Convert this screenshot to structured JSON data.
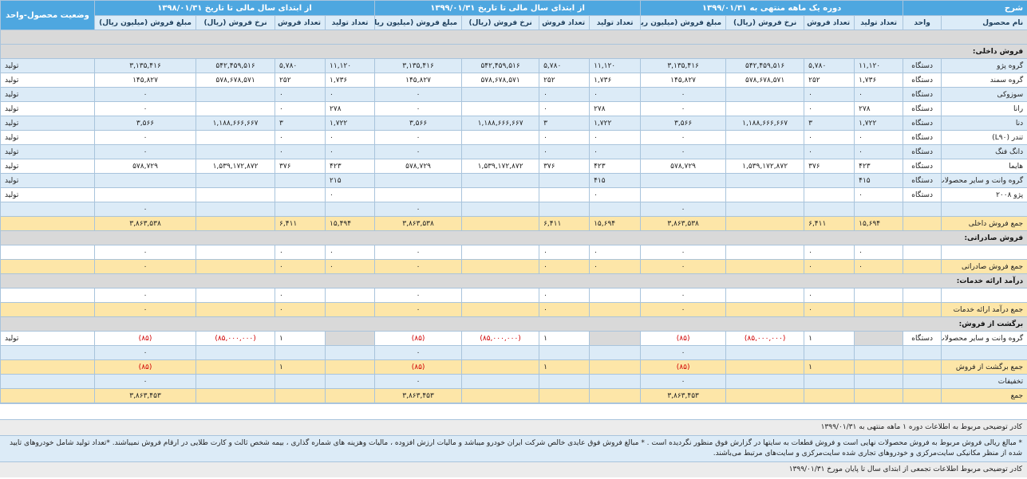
{
  "header": {
    "desc": "شرح",
    "p1": "دوره یک ماهه منتهی به ۱۳۹۹/۰۱/۳۱",
    "p2": "از ابتدای سال مالی تا تاریخ ۱۳۹۹/۰۱/۳۱",
    "p3": "از ابتدای سال مالی تا تاریخ ۱۳۹۸/۰۱/۳۱",
    "status": "وضعیت محصول-واحد"
  },
  "subheader": {
    "product": "نام محصول",
    "unit": "واحد",
    "prod_qty": "تعداد تولید",
    "sale_qty": "تعداد فروش",
    "sale_rate": "نرخ فروش (ریال)",
    "sale_amount": "مبلغ فروش (میلیون ریال)"
  },
  "rows": [
    {
      "type": "blank"
    },
    {
      "type": "section",
      "label": "فروش داخلی:"
    },
    {
      "type": "data",
      "style": "blue",
      "name": "گروه پژو",
      "unit": "دستگاه",
      "c": [
        "۱۱,۱۲۰",
        "۵,۷۸۰",
        "۵۴۲,۴۵۹,۵۱۶",
        "۳,۱۳۵,۴۱۶",
        "۱۱,۱۲۰",
        "۵,۷۸۰",
        "۵۴۲,۴۵۹,۵۱۶",
        "۳,۱۳۵,۴۱۶",
        "۱۱,۱۲۰",
        "۵,۷۸۰",
        "۵۴۲,۴۵۹,۵۱۶",
        "۳,۱۳۵,۴۱۶"
      ],
      "status": "تولید"
    },
    {
      "type": "data",
      "style": "white",
      "name": "گروه سمند",
      "unit": "دستگاه",
      "c": [
        "۱,۷۳۶",
        "۲۵۲",
        "۵۷۸,۶۷۸,۵۷۱",
        "۱۴۵,۸۲۷",
        "۱,۷۳۶",
        "۲۵۲",
        "۵۷۸,۶۷۸,۵۷۱",
        "۱۴۵,۸۲۷",
        "۱,۷۳۶",
        "۲۵۲",
        "۵۷۸,۶۷۸,۵۷۱",
        "۱۴۵,۸۲۷"
      ],
      "status": "تولید"
    },
    {
      "type": "data",
      "style": "blue",
      "name": "سوزوکی",
      "unit": "دستگاه",
      "c": [
        "۰",
        "۰",
        "",
        "۰",
        "۰",
        "۰",
        "",
        "۰",
        "۰",
        "۰",
        "",
        "۰"
      ],
      "status": "تولید"
    },
    {
      "type": "data",
      "style": "white",
      "name": "رانا",
      "unit": "دستگاه",
      "c": [
        "۲۷۸",
        "۰",
        "",
        "۰",
        "۲۷۸",
        "۰",
        "",
        "۰",
        "۲۷۸",
        "۰",
        "",
        "۰"
      ],
      "status": "تولید"
    },
    {
      "type": "data",
      "style": "blue",
      "name": "دنا",
      "unit": "دستگاه",
      "c": [
        "۱,۷۲۲",
        "۳",
        "۱,۱۸۸,۶۶۶,۶۶۷",
        "۳,۵۶۶",
        "۱,۷۲۲",
        "۳",
        "۱,۱۸۸,۶۶۶,۶۶۷",
        "۳,۵۶۶",
        "۱,۷۲۲",
        "۳",
        "۱,۱۸۸,۶۶۶,۶۶۷",
        "۳,۵۶۶"
      ],
      "status": "تولید"
    },
    {
      "type": "data",
      "style": "white",
      "name": "تندر (L۹۰)",
      "unit": "دستگاه",
      "c": [
        "۰",
        "۰",
        "",
        "۰",
        "۰",
        "۰",
        "",
        "۰",
        "۰",
        "۰",
        "",
        "۰"
      ],
      "status": "تولید"
    },
    {
      "type": "data",
      "style": "blue",
      "name": "دانگ فنگ",
      "unit": "دستگاه",
      "c": [
        "۰",
        "۰",
        "",
        "۰",
        "۰",
        "۰",
        "",
        "۰",
        "۰",
        "۰",
        "",
        "۰"
      ],
      "status": "تولید"
    },
    {
      "type": "data",
      "style": "white",
      "name": "هایما",
      "unit": "دستگاه",
      "c": [
        "۴۲۳",
        "۳۷۶",
        "۱,۵۳۹,۱۷۲,۸۷۲",
        "۵۷۸,۷۲۹",
        "۴۲۳",
        "۳۷۶",
        "۱,۵۳۹,۱۷۲,۸۷۲",
        "۵۷۸,۷۲۹",
        "۴۲۳",
        "۳۷۶",
        "۱,۵۳۹,۱۷۲,۸۷۲",
        "۵۷۸,۷۲۹"
      ],
      "status": "تولید"
    },
    {
      "type": "data",
      "style": "blue",
      "name": "گروه وانت و سایر محصولات جدید",
      "unit": "دستگاه",
      "c": [
        "۴۱۵",
        "",
        "",
        "",
        "۴۱۵",
        "",
        "",
        "",
        "۲۱۵",
        "",
        "",
        ""
      ],
      "status": "تولید"
    },
    {
      "type": "data",
      "style": "white",
      "name": "پژو ۲۰۰۸",
      "unit": "دستگاه",
      "c": [
        "۰",
        "",
        "",
        "",
        "۰",
        "",
        "",
        "",
        "۰",
        "",
        "",
        ""
      ],
      "status": "تولید"
    },
    {
      "type": "data",
      "style": "blue",
      "name": "",
      "unit": "",
      "c": [
        "",
        "",
        "",
        "۰",
        "",
        "",
        "",
        "۰",
        "",
        "",
        "",
        "۰"
      ],
      "status": ""
    },
    {
      "type": "data",
      "style": "gold",
      "name": "جمع فروش داخلی",
      "unit": "",
      "c": [
        "۱۵,۶۹۴",
        "۶,۴۱۱",
        "",
        "۳,۸۶۳,۵۳۸",
        "۱۵,۶۹۴",
        "۶,۴۱۱",
        "",
        "۳,۸۶۳,۵۳۸",
        "۱۵,۴۹۴",
        "۶,۴۱۱",
        "",
        "۳,۸۶۳,۵۳۸"
      ],
      "status": ""
    },
    {
      "type": "section",
      "label": "فروش صادراتی:"
    },
    {
      "type": "data",
      "style": "white",
      "name": "",
      "unit": "",
      "c": [
        "۰",
        "۰",
        "",
        "۰",
        "۰",
        "۰",
        "",
        "۰",
        "۰",
        "۰",
        "",
        "۰"
      ],
      "status": ""
    },
    {
      "type": "data",
      "style": "gold",
      "name": "جمع فروش صادراتی",
      "unit": "",
      "c": [
        "۰",
        "۰",
        "",
        "۰",
        "۰",
        "۰",
        "",
        "۰",
        "۰",
        "۰",
        "",
        "۰"
      ],
      "status": ""
    },
    {
      "type": "section",
      "label": "درآمد ارائه خدمات:"
    },
    {
      "type": "data",
      "style": "white",
      "name": "",
      "unit": "",
      "c": [
        "",
        "۰",
        "",
        "۰",
        "",
        "۰",
        "",
        "۰",
        "",
        "۰",
        "",
        "۰"
      ],
      "status": ""
    },
    {
      "type": "data",
      "style": "gold",
      "name": "جمع درآمد ارائه خدمات",
      "unit": "",
      "c": [
        "",
        "۰",
        "",
        "۰",
        "",
        "۰",
        "",
        "۰",
        "",
        "۰",
        "",
        "۰"
      ],
      "status": ""
    },
    {
      "type": "section",
      "label": "برگشت از فروش:"
    },
    {
      "type": "data",
      "style": "white",
      "name": "گروه وانت و سایر محصولات جدید",
      "unit": "دستگاه",
      "c": [
        "",
        "۱",
        "(۸۵,۰۰۰,۰۰۰)",
        "(۸۵)",
        "",
        "۱",
        "(۸۵,۰۰۰,۰۰۰)",
        "(۸۵)",
        "",
        "۱",
        "(۸۵,۰۰۰,۰۰۰)",
        "(۸۵)"
      ],
      "gray": [
        0,
        4,
        8
      ],
      "status": "تولید"
    },
    {
      "type": "data",
      "style": "blue",
      "name": "",
      "unit": "",
      "c": [
        "",
        "",
        "",
        "۰",
        "",
        "",
        "",
        "۰",
        "",
        "",
        "",
        "۰"
      ],
      "status": ""
    },
    {
      "type": "data",
      "style": "gold",
      "name": "جمع برگشت از فروش",
      "unit": "",
      "c": [
        "",
        "۱",
        "",
        "(۸۵)",
        "",
        "۱",
        "",
        "(۸۵)",
        "",
        "۱",
        "",
        "(۸۵)"
      ],
      "status": ""
    },
    {
      "type": "data",
      "style": "blue",
      "name": "تخفیفات",
      "unit": "",
      "c": [
        "",
        "",
        "",
        "۰",
        "",
        "",
        "",
        "۰",
        "",
        "",
        "",
        "۰"
      ],
      "status": ""
    },
    {
      "type": "data",
      "style": "gold",
      "name": "جمع",
      "unit": "",
      "c": [
        "",
        "",
        "",
        "۳,۸۶۳,۴۵۳",
        "",
        "",
        "",
        "۳,۸۶۳,۴۵۳",
        "",
        "",
        "",
        "۳,۸۶۳,۴۵۳"
      ],
      "status": ""
    }
  ],
  "notes": [
    {
      "style": "g",
      "text": "کادر توضیحی مربوط به اطلاعات دوره ۱ ماهه منتهی به ۱۳۹۹/۰۱/۳۱"
    },
    {
      "style": "b",
      "text": "* مبالغ ریالی فروش مربوط به فروش محصولات نهایی است و فروش قطعات به سایتها در گزارش فوق منظور نگردیده است . * مبالغ فروش فوق عایدی خالص شرکت ایران خودرو میباشد و مالیات ارزش افزوده ، مالیات وهزینه های شماره گذاری ، بیمه شخص ثالث و کارت طلایی در ارقام فروش نمیباشند. *تعداد تولید شامل خودروهای تایید شده از منظر مکانیکی سایت‌مرکزی و خودروهای تجاری شده سایت‌مرکزی و سایت‌های مرتبط می‌باشند."
    },
    {
      "style": "g",
      "text": "کادر توضیحی مربوط اطلاعات تجمعی از ابتدای سال تا پایان مورخ ۱۳۹۹/۰۱/۳۱"
    }
  ]
}
